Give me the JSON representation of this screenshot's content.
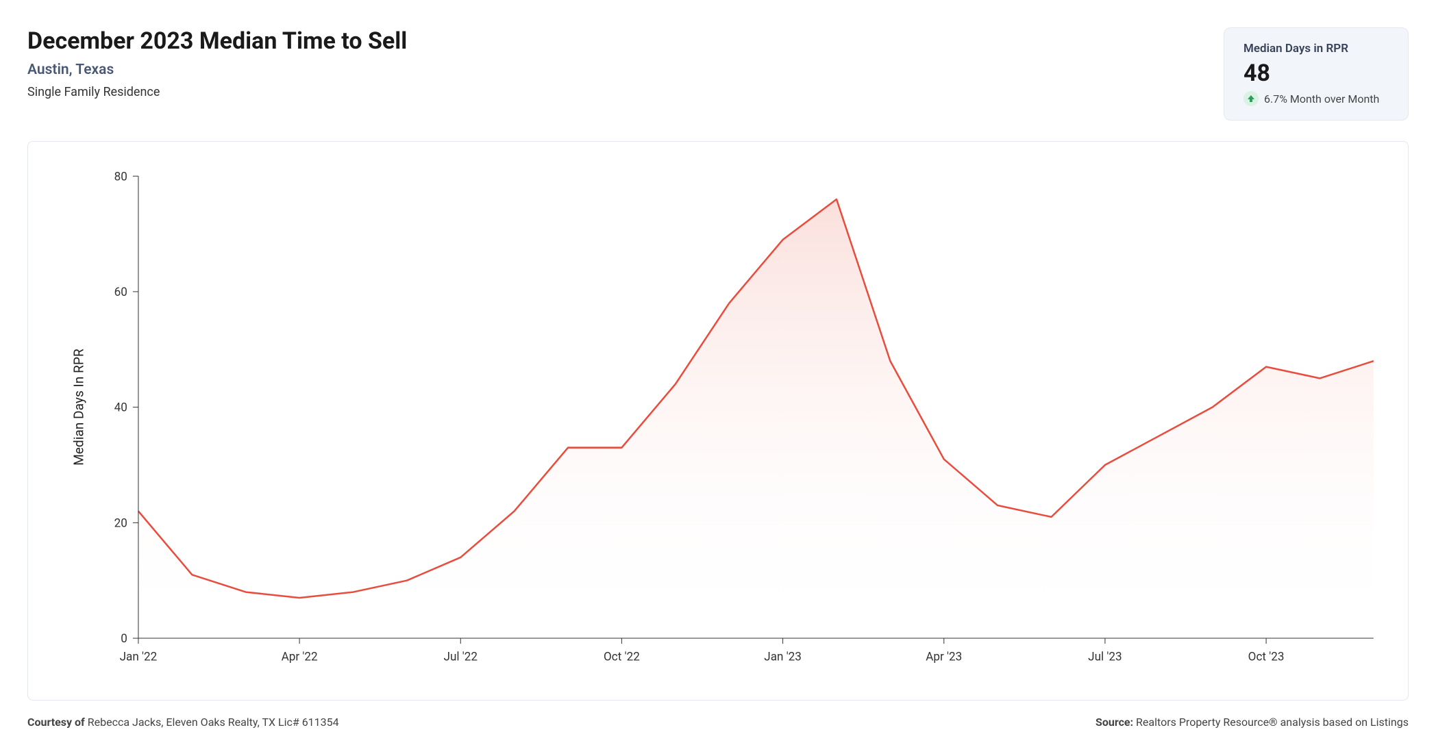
{
  "header": {
    "title": "December 2023 Median Time to Sell",
    "location": "Austin, Texas",
    "property_type": "Single Family Residence"
  },
  "stat_card": {
    "label": "Median Days in RPR",
    "value": "48",
    "change_text": "6.7% Month over Month",
    "change_direction": "up",
    "arrow_color": "#2f9e5a",
    "arrow_bg": "#d9f2e3"
  },
  "chart": {
    "type": "area",
    "line_color": "#e84c3d",
    "fill_top_color": "#f8d2cd",
    "fill_bottom_color": "#ffffff",
    "line_width": 2.5,
    "background_color": "#ffffff",
    "border_color": "#e3e8ef",
    "y_axis": {
      "title": "Median Days In RPR",
      "min": 0,
      "max": 80,
      "tick_step": 20,
      "ticks": [
        0,
        20,
        40,
        60,
        80
      ]
    },
    "x_axis": {
      "visible_labels": [
        "Jan '22",
        "Apr '22",
        "Jul '22",
        "Oct '22",
        "Jan '23",
        "Apr '23",
        "Jul '23",
        "Oct '23"
      ],
      "label_positions": [
        0,
        3,
        6,
        9,
        12,
        15,
        18,
        21
      ]
    },
    "series": {
      "labels": [
        "Jan '22",
        "Feb '22",
        "Mar '22",
        "Apr '22",
        "May '22",
        "Jun '22",
        "Jul '22",
        "Aug '22",
        "Sep '22",
        "Oct '22",
        "Nov '22",
        "Dec '22",
        "Jan '23",
        "Feb '23",
        "Mar '23",
        "Apr '23",
        "May '23",
        "Jun '23",
        "Jul '23",
        "Aug '23",
        "Sep '23",
        "Oct '23",
        "Nov '23",
        "Dec '23"
      ],
      "values": [
        22,
        11,
        8,
        7,
        8,
        10,
        14,
        22,
        33,
        33,
        44,
        58,
        69,
        76,
        48,
        31,
        23,
        21,
        30,
        35,
        40,
        47,
        45,
        48
      ]
    }
  },
  "footer": {
    "courtesy_label": "Courtesy of",
    "courtesy_text": "Rebecca Jacks, Eleven Oaks Realty, TX Lic# 611354",
    "source_label": "Source:",
    "source_text": "Realtors Property Resource® analysis based on Listings"
  }
}
